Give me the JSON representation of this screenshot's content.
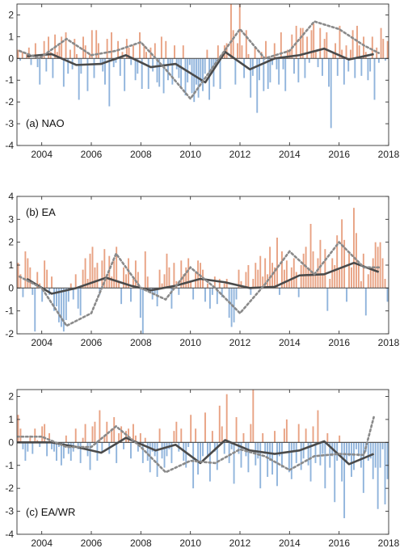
{
  "figure": {
    "colors": {
      "positive": "#e8a283",
      "negative": "#90b4dc",
      "line": "#4a4a4a",
      "dashed": "#8a8a8a",
      "zero": "#555555",
      "frame": "#333333"
    }
  },
  "chart_data": [
    {
      "type": "bar",
      "title": "",
      "label": "(a) NAO",
      "xlabel": "",
      "ylabel": "",
      "xlim": [
        2003,
        2018
      ],
      "ylim": [
        -4,
        2.5
      ],
      "xticks": [
        "2004",
        "2006",
        "2008",
        "2010",
        "2012",
        "2014",
        "2016",
        "2018"
      ],
      "yticks": [
        "-4",
        "-3",
        "-2",
        "-1",
        "0",
        "1",
        "2"
      ],
      "grid": false,
      "monthly_bars": [
        0.4,
        -0.1,
        0.3,
        0.0,
        0.2,
        0.5,
        -0.3,
        0.0,
        0.7,
        -0.4,
        -1.2,
        0.2,
        0.8,
        -0.6,
        1.0,
        0.3,
        -0.9,
        1.1,
        0.3,
        0.6,
        1.0,
        -1.3,
        1.2,
        -0.7,
        0.4,
        -0.5,
        0.9,
        0.2,
        -1.9,
        -0.7,
        1.0,
        0.6,
        -1.5,
        0.2,
        1.3,
        -0.9,
        1.3,
        0.7,
        -0.3,
        -0.6,
        -1.2,
        0.9,
        -2.2,
        1.2,
        -0.4,
        -0.2,
        0.8,
        -0.8,
        0.3,
        -1.5,
        0.9,
        0.5,
        -0.3,
        0.6,
        -1.0,
        -0.7,
        1.2,
        -1.4,
        0.6,
        0.3,
        -1.4,
        0.5,
        -0.6,
        0.7,
        -1.1,
        -1.3,
        1.0,
        -1.6,
        0.8,
        -1.0,
        -0.3,
        -1.2,
        0.6,
        -0.5,
        -0.9,
        -1.4,
        0.6,
        -1.7,
        -1.1,
        -0.3,
        -1.6,
        -2.0,
        -1.2,
        -1.8,
        -1.1,
        -1.5,
        -0.7,
        0.4,
        -1.9,
        -0.5,
        -1.3,
        -0.4,
        0.6,
        -1.4,
        0.2,
        0.6,
        0.7,
        0.0,
        2.5,
        1.3,
        -1.2,
        0.7,
        2.5,
        0.6,
        -0.9,
        1.3,
        0.2,
        -1.8,
        -0.8,
        0.5,
        -2.5,
        -1.0,
        0.3,
        -1.5,
        0.8,
        -1.4,
        -1.1,
        -0.3,
        0.7,
        -0.5,
        -1.2,
        1.2,
        -0.5,
        -1.5,
        0.4,
        0.4,
        1.1,
        -0.7,
        1.5,
        -1.1,
        1.4,
        1.4,
        -0.9,
        1.0,
        -0.2,
        1.3,
        1.6,
        0.3,
        -0.4,
        1.4,
        -0.8,
        0.9,
        1.2,
        -1.3,
        -3.2,
        0.3,
        0.7,
        -0.8,
        1.5,
        0.4,
        -1.2,
        0.6,
        -0.6,
        0.4,
        1.3,
        -0.9,
        1.5,
        0.6,
        -0.8,
        1.0,
        0.3,
        -1.0,
        -0.6,
        1.0,
        -1.9,
        0.5,
        -0.2,
        1.4,
        0.9,
        -0.1,
        0.8
      ],
      "series": [
        {
          "name": "",
          "style": "solid",
          "x": [
            2003.4,
            2004.4,
            2005.4,
            2006.4,
            2007.4,
            2008.4,
            2009.4,
            2010.6,
            2011.4,
            2012.4,
            2013.4,
            2014.4,
            2015.4,
            2016.4,
            2017.4
          ],
          "values": [
            0.1,
            0.2,
            -0.3,
            -0.25,
            0.15,
            -0.4,
            -0.25,
            -1.1,
            0.3,
            -0.5,
            0.0,
            0.15,
            0.45,
            -0.05,
            0.2
          ]
        },
        {
          "name": "",
          "style": "dashed",
          "x": [
            2003.1,
            2003.9,
            2005.0,
            2006.0,
            2007.0,
            2008.0,
            2009.0,
            2010.0,
            2011.0,
            2012.0,
            2013.0,
            2014.0,
            2015.0,
            2016.0,
            2017.0,
            2017.6
          ],
          "values": [
            0.35,
            0.0,
            0.9,
            0.15,
            0.35,
            0.75,
            -0.5,
            -1.85,
            -0.25,
            1.35,
            0.0,
            0.35,
            1.7,
            1.35,
            0.6,
            0.25
          ]
        }
      ]
    },
    {
      "type": "bar",
      "title": "",
      "label": "(b) EA",
      "xlabel": "",
      "ylabel": "",
      "xlim": [
        2003,
        2018
      ],
      "ylim": [
        -2,
        4
      ],
      "xticks": [
        "2004",
        "2006",
        "2008",
        "2010",
        "2012",
        "2014",
        "2016",
        "2018"
      ],
      "yticks": [
        "-2",
        "-1",
        "0",
        "1",
        "2",
        "3",
        "4"
      ],
      "grid": false,
      "monthly_bars": [
        1.1,
        0.6,
        -0.4,
        1.6,
        1.3,
        0.9,
        -0.3,
        -1.9,
        0.7,
        0.2,
        -0.6,
        1.2,
        0.8,
        -0.3,
        0.5,
        -1.0,
        -0.8,
        -1.5,
        -1.7,
        -1.9,
        -1.4,
        -0.6,
        0.2,
        -0.5,
        0.6,
        -0.9,
        -1.2,
        0.8,
        1.3,
        0.4,
        1.5,
        1.8,
        0.9,
        1.1,
        -0.3,
        1.2,
        1.7,
        0.6,
        1.4,
        0.5,
        1.2,
        1.8,
        0.3,
        -0.7,
        0.9,
        0.6,
        1.3,
        -0.6,
        0.4,
        1.2,
        0.7,
        -1.3,
        -2.0,
        1.6,
        0.5,
        -0.2,
        -0.5,
        -0.3,
        -0.8,
        0.8,
        0.2,
        0.6,
        1.5,
        0.9,
        -0.9,
        1.1,
        0.3,
        -0.3,
        1.2,
        0.6,
        0.9,
        1.3,
        0.3,
        -0.5,
        0.7,
        1.2,
        1.1,
        0.8,
        -0.6,
        0.2,
        -0.9,
        -0.3,
        0.5,
        -0.7,
        0.4,
        -0.4,
        0.2,
        0.4,
        -1.3,
        -1.7,
        -1.5,
        -0.5,
        0.8,
        0.3,
        0.1,
        0.7,
        1.0,
        -0.3,
        0.4,
        1.1,
        0.8,
        1.4,
        0.5,
        1.3,
        0.6,
        1.8,
        1.1,
        0.9,
        2.2,
        -0.3,
        1.6,
        0.8,
        1.2,
        0.3,
        0.9,
        1.3,
        0.7,
        -0.4,
        1.0,
        1.5,
        1.8,
        0.9,
        2.8,
        1.6,
        0.7,
        1.3,
        2.1,
        0.6,
        1.7,
        -1.0,
        0.4,
        1.3,
        1.0,
        2.3,
        0.8,
        3.0,
        2.1,
        -0.6,
        1.5,
        0.9,
        3.5,
        2.4,
        1.0,
        0.3,
        1.5,
        -1.2,
        0.6,
        0.9,
        1.3,
        2.0,
        1.8,
        2.0,
        1.3,
        0.4,
        -0.6
      ],
      "series": [
        {
          "name": "",
          "style": "solid",
          "x": [
            2003.4,
            2004.4,
            2005.4,
            2006.6,
            2007.6,
            2008.4,
            2009.4,
            2010.4,
            2011.4,
            2012.4,
            2013.4,
            2014.4,
            2015.4,
            2016.6,
            2017.6
          ],
          "values": [
            0.4,
            -0.25,
            0.0,
            0.45,
            0.1,
            -0.1,
            0.1,
            0.4,
            0.25,
            0.0,
            0.05,
            0.55,
            0.6,
            1.1,
            0.7
          ]
        },
        {
          "name": "",
          "style": "dashed",
          "x": [
            2003.1,
            2004.0,
            2005.0,
            2006.0,
            2007.0,
            2008.0,
            2009.0,
            2010.0,
            2011.0,
            2012.0,
            2013.0,
            2014.0,
            2015.0,
            2016.0,
            2017.0,
            2017.6
          ],
          "values": [
            0.5,
            0.0,
            -1.65,
            -1.1,
            1.5,
            0.0,
            -0.5,
            0.9,
            0.0,
            -1.1,
            0.15,
            1.6,
            0.6,
            2.0,
            0.9,
            0.9
          ]
        }
      ]
    },
    {
      "type": "bar",
      "title": "",
      "label": "(c) EA/WR",
      "xlabel": "",
      "ylabel": "",
      "xlim": [
        2003,
        2018
      ],
      "ylim": [
        -4,
        2.3
      ],
      "xticks": [
        "2004",
        "2006",
        "2008",
        "2010",
        "2012",
        "2014",
        "2016",
        "2018"
      ],
      "yticks": [
        "-4",
        "-3",
        "-2",
        "-1",
        "0",
        "1",
        "2"
      ],
      "grid": false,
      "monthly_bars": [
        1.2,
        0.6,
        -0.3,
        -0.8,
        -0.4,
        0.3,
        -0.5,
        0.6,
        0.1,
        -0.2,
        0.7,
        0.8,
        -0.6,
        0.4,
        -0.3,
        -0.4,
        -0.8,
        -0.2,
        -1.0,
        -0.7,
        0.3,
        -0.5,
        -0.8,
        -0.4,
        0.6,
        -0.3,
        -0.9,
        0.2,
        0.8,
        -0.6,
        -1.2,
        0.7,
        0.9,
        -0.8,
        1.4,
        -0.4,
        0.3,
        0.9,
        -0.5,
        0.6,
        1.1,
        -0.9,
        0.4,
        0.7,
        -0.3,
        0.5,
        0.6,
        -0.7,
        0.8,
        0.3,
        -0.4,
        0.4,
        -0.9,
        0.2,
        -0.8,
        -1.3,
        -0.4,
        -0.6,
        -1.5,
        0.6,
        -0.7,
        -1.1,
        -0.6,
        -0.3,
        -0.9,
        0.5,
        0.9,
        -0.4,
        0.6,
        -0.8,
        -1.1,
        -0.2,
        1.2,
        -2.0,
        0.6,
        -1.4,
        -0.9,
        -0.6,
        1.3,
        -0.6,
        -1.7,
        0.5,
        -0.4,
        -1.2,
        1.6,
        0.7,
        -0.5,
        2.1,
        -0.9,
        -0.3,
        -1.8,
        1.1,
        -0.5,
        -1.1,
        0.4,
        -0.6,
        -1.3,
        0.8,
        2.3,
        -1.0,
        -0.7,
        -2.0,
        0.4,
        -0.5,
        -1.5,
        -0.8,
        -1.4,
        0.5,
        -1.9,
        -0.6,
        -1.1,
        0.6,
        1.0,
        -1.3,
        -1.6,
        -0.4,
        -0.9,
        0.8,
        -1.2,
        -0.7,
        0.6,
        -1.0,
        -1.7,
        0.7,
        -0.9,
        1.4,
        -1.0,
        -0.5,
        -2.0,
        0.4,
        -1.1,
        -0.6,
        -2.6,
        -0.8,
        0.3,
        -1.7,
        -3.3,
        -0.9,
        -0.6,
        -1.5,
        -1.2,
        -0.3,
        -0.6,
        -1.1,
        -2.2,
        -0.4,
        -0.8,
        -0.7,
        -1.6,
        -1.1,
        -2.9,
        -1.1,
        -0.3,
        -2.7,
        -1.6
      ],
      "series": [
        {
          "name": "",
          "style": "solid",
          "x": [
            2003.0,
            2004.4,
            2005.4,
            2006.4,
            2007.4,
            2008.6,
            2009.4,
            2010.4,
            2011.4,
            2012.4,
            2013.4,
            2014.4,
            2015.4,
            2016.4,
            2017.4
          ],
          "values": [
            0.0,
            0.0,
            -0.2,
            -0.45,
            0.2,
            -0.35,
            -0.1,
            -0.9,
            0.1,
            -0.35,
            -0.5,
            -0.35,
            0.05,
            -0.95,
            -0.5
          ]
        },
        {
          "name": "",
          "style": "dashed",
          "x": [
            2003.0,
            2004.0,
            2005.0,
            2006.0,
            2007.0,
            2008.0,
            2009.0,
            2010.0,
            2011.0,
            2012.0,
            2013.0,
            2014.0,
            2015.0,
            2016.0,
            2017.0,
            2017.4
          ],
          "values": [
            0.25,
            0.25,
            -0.2,
            -0.2,
            0.7,
            -0.2,
            -1.3,
            -0.8,
            -0.9,
            -0.3,
            -0.6,
            -1.2,
            -0.6,
            -0.5,
            -0.55,
            1.1
          ]
        }
      ]
    }
  ]
}
